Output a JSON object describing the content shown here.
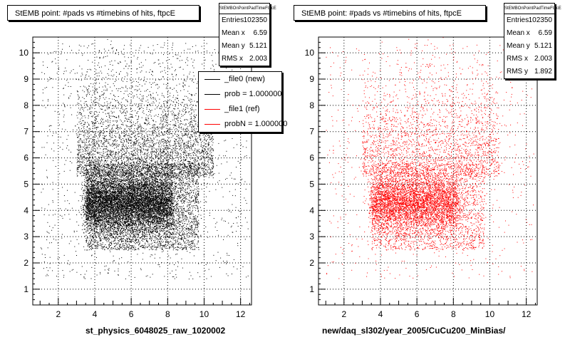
{
  "colors": {
    "left_markers": "#000000",
    "right_markers": "#ff0000",
    "frame": "#000000",
    "grid": "#000000"
  },
  "chart_data": [
    {
      "type": "scatter",
      "title": "StEMB point: #pads vs #timebins of hits, ftpcE",
      "xlabel": "st_physics_6048025_raw_1020002",
      "ylabel": "",
      "xlim": [
        0.6,
        12.6
      ],
      "ylim": [
        0.4,
        10.6
      ],
      "xticks": [
        2,
        4,
        6,
        8,
        10,
        12
      ],
      "yticks": [
        1,
        2,
        3,
        4,
        5,
        6,
        7,
        8,
        9,
        10
      ],
      "grid": true,
      "marker_color": "#000000",
      "series": [
        {
          "dense_core": {
            "x_range": [
              3.5,
              8.2
            ],
            "y_range": [
              3.5,
              5.3
            ]
          }
        }
      ],
      "stats": {
        "name": "StEMBOnPointPadTimeFtpcE",
        "rows": [
          {
            "label": "Entries",
            "value": "102350"
          },
          {
            "label": "Mean x",
            "value": "6.59"
          },
          {
            "label": "Mean y",
            "value": "5.121"
          },
          {
            "label": "RMS x",
            "value": "2.003"
          }
        ]
      },
      "legend": {
        "placement": "top-right",
        "entries": [
          {
            "label": "_file0 (new)",
            "color": "#000000"
          },
          {
            "label": "prob = 1.000000",
            "color": "#000000"
          },
          {
            "label": "_file1 (ref)",
            "color": "#ff0000"
          },
          {
            "label": "probN = 1.000000",
            "color": "#ff0000"
          }
        ]
      }
    },
    {
      "type": "scatter",
      "title": "StEMB point: #pads vs #timebins of hits, ftpcE",
      "xlabel": "new/daq_sl302/year_2005/CuCu200_MinBias/",
      "ylabel": "",
      "xlim": [
        0.6,
        12.6
      ],
      "ylim": [
        0.4,
        10.6
      ],
      "xticks": [
        2,
        4,
        6,
        8,
        10,
        12
      ],
      "yticks": [
        1,
        2,
        3,
        4,
        5,
        6,
        7,
        8,
        9,
        10
      ],
      "grid": true,
      "marker_color": "#ff0000",
      "stats": {
        "name": "StEMBOnPointPadTimeFtpcE",
        "rows": [
          {
            "label": "Entries",
            "value": "102350"
          },
          {
            "label": "Mean x",
            "value": "6.59"
          },
          {
            "label": "Mean y",
            "value": "5.121"
          },
          {
            "label": "RMS x",
            "value": "2.003"
          },
          {
            "label": "RMS y",
            "value": "1.892"
          }
        ]
      }
    }
  ]
}
